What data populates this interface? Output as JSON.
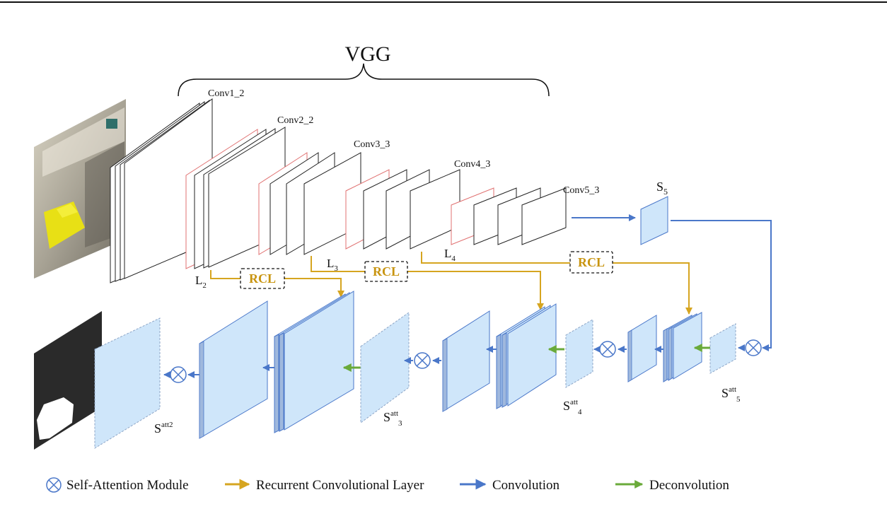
{
  "title": "VGG",
  "layers": {
    "conv1": "Conv1_2",
    "conv2": "Conv2_2",
    "conv3": "Conv3_3",
    "conv4": "Conv4_3",
    "conv5": "Conv5_3"
  },
  "l_labels": {
    "l2": "L",
    "l2_sub": "2",
    "l3": "L",
    "l3_sub": "3",
    "l4": "L",
    "l4_sub": "4"
  },
  "rcl_label": "RCL",
  "s5": {
    "main": "S",
    "sub": "5"
  },
  "att_labels": {
    "s_att2": {
      "main": "S",
      "sup": "att2"
    },
    "s_att3": {
      "main": "S",
      "sup": "att",
      "sub": "3"
    },
    "s_att4": {
      "main": "S",
      "sup": "att",
      "sub": "4"
    },
    "s_att5": {
      "main": "S",
      "sup": "att",
      "sub": "5"
    }
  },
  "legend": {
    "self_attention": "Self-Attention Module",
    "rcl": "Recurrent Convolutional Layer",
    "convolution": "Convolution",
    "deconvolution": "Deconvolution"
  },
  "colors": {
    "rcl": "#D6A520",
    "conv": "#4A77C9",
    "deconv": "#6AAA3A",
    "feature_fill": "#CFE6FA",
    "feature_edge": "#8EA6C7",
    "red_edge": "#E07070"
  }
}
